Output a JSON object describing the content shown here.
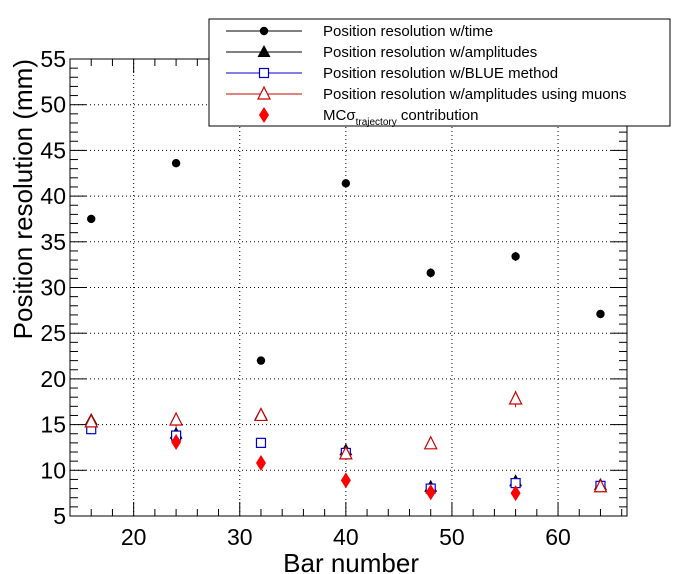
{
  "chart_data": {
    "type": "scatter",
    "title": "",
    "xlabel": "Bar number",
    "ylabel": "Position resolution (mm)",
    "xlim": [
      14,
      66.5
    ],
    "ylim": [
      5,
      55
    ],
    "xticks": [
      20,
      30,
      40,
      50,
      60
    ],
    "xtick_labels": [
      "20",
      "30",
      "40",
      "50",
      "60"
    ],
    "yticks": [
      5,
      10,
      15,
      20,
      25,
      30,
      35,
      40,
      45,
      50,
      55
    ],
    "ytick_labels": [
      "5",
      "10",
      "15",
      "20",
      "25",
      "30",
      "35",
      "40",
      "45",
      "50",
      "55"
    ],
    "grid": true,
    "legend_position": "top-right",
    "series": [
      {
        "name": "Position resolution w/time",
        "marker": "circle",
        "color": "#000000",
        "x": [
          16,
          24,
          32,
          40,
          48,
          56,
          64
        ],
        "y": [
          37.5,
          43.6,
          22.0,
          41.4,
          31.6,
          33.4,
          27.1
        ],
        "err": [
          0.2,
          0.2,
          0.2,
          0.4,
          0.5,
          0.5,
          0.2
        ]
      },
      {
        "name": "Position resolution w/amplitudes",
        "marker": "triangle-filled",
        "color": "#000000",
        "x": [
          16,
          24,
          32,
          40,
          48,
          56,
          64
        ],
        "y": [
          15.5,
          14.0,
          16.1,
          12.2,
          8.2,
          8.8,
          8.4
        ],
        "err": [
          0.2,
          0.2,
          0.2,
          0.2,
          0.2,
          0.2,
          0.2
        ]
      },
      {
        "name": "Position resolution w/BLUE method",
        "marker": "square-open",
        "color": "#0000cc",
        "x": [
          16,
          24,
          32,
          40,
          48,
          56,
          64
        ],
        "y": [
          14.5,
          13.8,
          13.0,
          11.9,
          8.0,
          8.6,
          8.3
        ],
        "err": [
          0.2,
          0.2,
          0.2,
          0.2,
          0.2,
          0.2,
          0.2
        ]
      },
      {
        "name": "Position resolution w/amplitudes using muons",
        "marker": "triangle-open",
        "color": "#cc0000",
        "x": [
          16,
          24,
          32,
          40,
          48,
          56,
          64
        ],
        "y": [
          15.3,
          15.5,
          16.0,
          11.8,
          12.9,
          17.8,
          8.2
        ],
        "err": [
          0.4,
          0.8,
          0.5,
          0.5,
          0.4,
          0.9,
          0.3
        ]
      },
      {
        "name": "MCσ",
        "name_subscript": "trajectory",
        "name_suffix": " contribution",
        "marker": "diamond-filled",
        "color": "#ff0000",
        "x": [
          24,
          32,
          40,
          48,
          56
        ],
        "y": [
          13.1,
          10.8,
          8.9,
          7.6,
          7.5
        ],
        "err": [
          0.3,
          0.3,
          0.3,
          0.3,
          0.3
        ]
      }
    ]
  }
}
